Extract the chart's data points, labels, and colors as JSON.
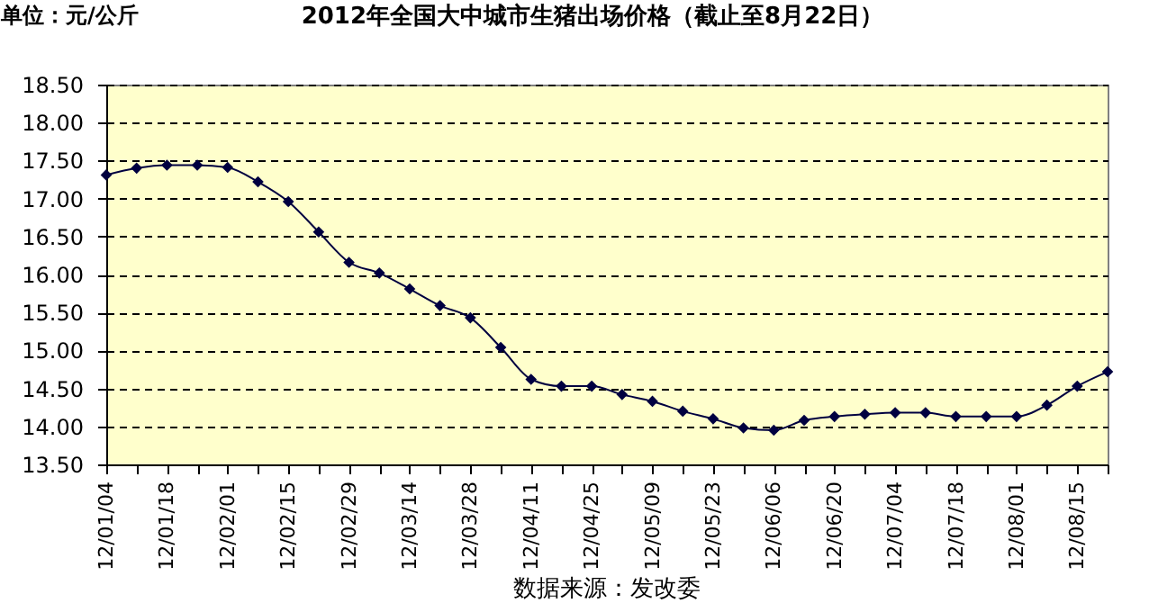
{
  "chart_data": {
    "type": "line",
    "title": "2012年全国大中城市生猪出场价格（截止至8月22日）",
    "ylabel": "单位：元/公斤",
    "annotations": [
      "数据来源：发改委"
    ],
    "categories": [
      "12/01/04",
      null,
      "12/01/18",
      null,
      "12/02/01",
      null,
      "12/02/15",
      null,
      "12/02/29",
      null,
      "12/03/14",
      null,
      "12/03/28",
      null,
      "12/04/11",
      null,
      "12/04/25",
      null,
      "12/05/09",
      null,
      "12/05/23",
      null,
      "12/06/06",
      null,
      "12/06/20",
      null,
      "12/07/04",
      null,
      "12/07/18",
      null,
      "12/08/01",
      null,
      "12/08/15",
      null
    ],
    "series": [
      {
        "color": "#000040",
        "values": [
          17.31,
          17.4,
          17.44,
          17.44,
          17.41,
          17.22,
          16.96,
          16.56,
          16.16,
          16.02,
          15.81,
          15.59,
          15.43,
          15.04,
          14.62,
          14.53,
          14.53,
          14.42,
          14.33,
          14.2,
          14.1,
          13.98,
          13.95,
          14.08,
          14.13,
          14.16,
          14.18,
          14.18,
          14.13,
          14.13,
          14.13,
          14.28,
          14.53,
          14.72
        ]
      }
    ],
    "ylim": [
      13.5,
      18.5
    ],
    "yticks": [
      {
        "value": 13.5,
        "label": "13.50"
      },
      {
        "value": 14,
        "label": "14.00"
      },
      {
        "value": 14.5,
        "label": "14.50"
      },
      {
        "value": 15,
        "label": "15.00"
      },
      {
        "value": 15.5,
        "label": "15.50"
      },
      {
        "value": 16,
        "label": "16.00"
      },
      {
        "value": 16.5,
        "label": "16.50"
      },
      {
        "value": 17,
        "label": "17.00"
      },
      {
        "value": 17.5,
        "label": "17.50"
      },
      {
        "value": 18,
        "label": "18.00"
      },
      {
        "value": 18.5,
        "label": "18.50"
      }
    ],
    "grid": "y",
    "marker": "diamond"
  }
}
